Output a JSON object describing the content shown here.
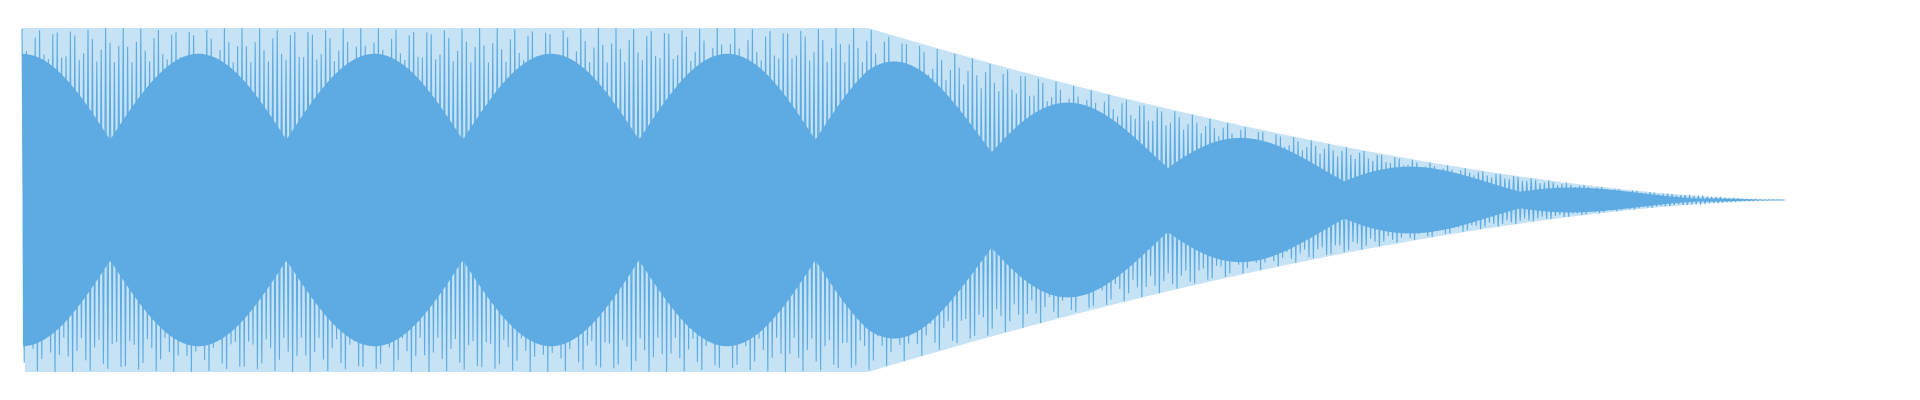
{
  "waveform": {
    "color": "#5DABE2",
    "background": "#FFFFFF",
    "peak_amplitude": 1.0,
    "sustain_until_fraction": 0.48,
    "decay_end_fraction": 1.0,
    "beat_cycles": 10
  }
}
